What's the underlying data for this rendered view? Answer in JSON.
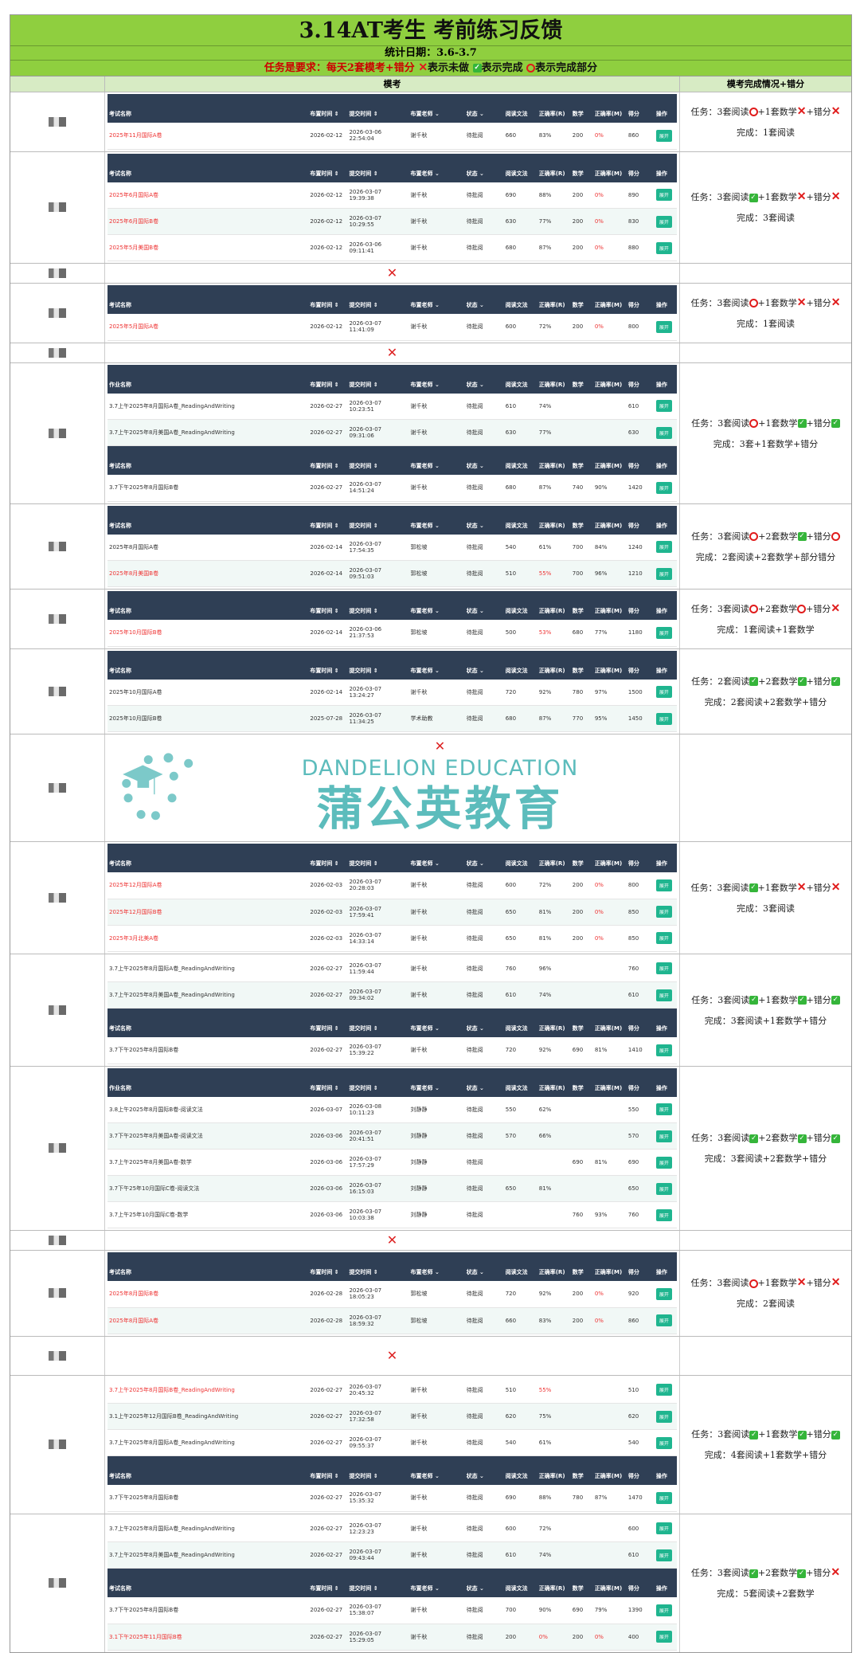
{
  "title": "3.14AT考生 考前练习反馈",
  "date": "统计日期：3.6-3.7",
  "req": {
    "text": "任务是要求：每天2套模考+错分",
    "x": "表示未做",
    "check": "表示完成",
    "circle": "表示完成部分"
  },
  "header": {
    "main": "模考",
    "right": "模考完成情况+错分"
  },
  "cols": {
    "exam": "考试名称",
    "work": "作业名称",
    "assign": "布置时间 ⇕",
    "submit": "提交时间 ⇕",
    "teacher": "布置老师 ⌄",
    "status": "状态 ⌄",
    "read": "阅读文法",
    "rrate": "正确率(R)",
    "math": "数学",
    "mrate": "正确率(M)",
    "score": "得分",
    "op": "操作"
  },
  "button_label": "展开",
  "x_mark": "✕",
  "colors": {
    "banner": "#8fcf3f",
    "table_header": "#2f3f55",
    "button": "#1fb58f",
    "red": "#e33",
    "check": "#35b53a"
  },
  "watermark": {
    "en": "DANDELION EDUCATION",
    "cn": "蒲公英教育"
  },
  "students": [
    {
      "tables": [
        {
          "kind": "exam",
          "rows": [
            [
              "2025年11月国际A卷",
              "2026-02-12",
              "2026-03-06 22:54:04",
              "谢千秋",
              "待批阅",
              "660",
              "83%",
              "200",
              "0%",
              "860",
              [
                0,
                8
              ]
            ]
          ]
        }
      ],
      "task": [
        [
          "任务：3套阅读",
          "o"
        ],
        [
          "+1套数学",
          "x"
        ],
        [
          "+错分",
          "x"
        ]
      ],
      "done": "完成：1套阅读"
    },
    {
      "tables": [
        {
          "kind": "exam",
          "rows": [
            [
              "2025年6月国际A卷",
              "2026-02-12",
              "2026-03-07 19:39:38",
              "谢千秋",
              "待批阅",
              "690",
              "88%",
              "200",
              "0%",
              "890",
              [
                0,
                8
              ]
            ],
            [
              "2025年6月国际B卷",
              "2026-02-12",
              "2026-03-07 10:29:55",
              "谢千秋",
              "待批阅",
              "630",
              "77%",
              "200",
              "0%",
              "830",
              [
                0,
                8
              ]
            ],
            [
              "2025年5月美国B卷",
              "2026-02-12",
              "2026-03-06 09:11:41",
              "谢千秋",
              "待批阅",
              "680",
              "87%",
              "200",
              "0%",
              "880",
              [
                0,
                8
              ]
            ]
          ]
        }
      ],
      "task": [
        [
          "任务：3套阅读",
          "c"
        ],
        [
          "+1套数学",
          "x"
        ],
        [
          "+错分",
          "x"
        ]
      ],
      "done": "完成：3套阅读"
    },
    {
      "x": true
    },
    {
      "tables": [
        {
          "kind": "exam",
          "rows": [
            [
              "2025年5月国际A卷",
              "2026-02-12",
              "2026-03-07 11:41:09",
              "谢千秋",
              "待批阅",
              "600",
              "72%",
              "200",
              "0%",
              "800",
              [
                0,
                8
              ]
            ]
          ]
        }
      ],
      "task": [
        [
          "任务：3套阅读",
          "o"
        ],
        [
          "+1套数学",
          "x"
        ],
        [
          "+错分",
          "x"
        ]
      ],
      "done": "完成：1套阅读"
    },
    {
      "x": true
    },
    {
      "tables": [
        {
          "kind": "work",
          "rows": [
            [
              "3.7上午2025年8月国际A卷_ReadingAndWriting",
              "2026-02-27",
              "2026-03-07 10:23:51",
              "谢千秋",
              "待批阅",
              "610",
              "74%",
              "",
              "",
              "610",
              []
            ],
            [
              "3.7上午2025年8月美国A卷_ReadingAndWriting",
              "2026-02-27",
              "2026-03-07 09:31:06",
              "谢千秋",
              "待批阅",
              "630",
              "77%",
              "",
              "",
              "630",
              []
            ]
          ]
        },
        {
          "kind": "exam",
          "rows": [
            [
              "3.7下午2025年8月国际B卷",
              "2026-02-27",
              "2026-03-07 14:51:24",
              "谢千秋",
              "待批阅",
              "680",
              "87%",
              "740",
              "90%",
              "1420",
              []
            ]
          ]
        }
      ],
      "task": [
        [
          "任务：3套阅读",
          "o"
        ],
        [
          "+1套数学",
          "c"
        ],
        [
          "+错分",
          "c"
        ]
      ],
      "done": "完成：3套+1套数学+错分"
    },
    {
      "tables": [
        {
          "kind": "exam",
          "rows": [
            [
              "2025年8月国际A卷",
              "2026-02-14",
              "2026-03-07 17:54:35",
              "郭松坡",
              "待批阅",
              "540",
              "61%",
              "700",
              "84%",
              "1240",
              []
            ],
            [
              "2025年8月美国B卷",
              "2026-02-14",
              "2026-03-07 09:51:03",
              "郭松坡",
              "待批阅",
              "510",
              "55%",
              "700",
              "96%",
              "1210",
              [
                0,
                6
              ]
            ]
          ]
        }
      ],
      "task": [
        [
          "任务：3套阅读",
          "o"
        ],
        [
          "+2套数学",
          "c"
        ],
        [
          "+错分",
          "o"
        ]
      ],
      "done": "完成：2套阅读+2套数学+部分错分"
    },
    {
      "tables": [
        {
          "kind": "exam",
          "rows": [
            [
              "2025年10月国际B卷",
              "2026-02-14",
              "2026-03-06 21:37:53",
              "郭松坡",
              "待批阅",
              "500",
              "53%",
              "680",
              "77%",
              "1180",
              [
                0,
                6
              ]
            ]
          ]
        }
      ],
      "task": [
        [
          "任务：3套阅读",
          "o"
        ],
        [
          "+2套数学",
          "o"
        ],
        [
          "+错分",
          "x"
        ]
      ],
      "done": "完成：1套阅读+1套数学"
    },
    {
      "tables": [
        {
          "kind": "exam",
          "rows": [
            [
              "2025年10月国际A卷",
              "2026-02-14",
              "2026-03-07 13:24:27",
              "谢千秋",
              "待批阅",
              "720",
              "92%",
              "780",
              "97%",
              "1500",
              []
            ],
            [
              "2025年10月国际B卷",
              "2025-07-28",
              "2026-03-07 11:34:25",
              "学术助教",
              "待批阅",
              "680",
              "87%",
              "770",
              "95%",
              "1450",
              []
            ]
          ]
        }
      ],
      "task": [
        [
          "任务：2套阅读",
          "c"
        ],
        [
          "+2套数学",
          "c"
        ],
        [
          "+错分",
          "c"
        ]
      ],
      "done": "完成：2套阅读+2套数学+错分"
    },
    {
      "x": true,
      "tall": true
    },
    {
      "tables": [
        {
          "kind": "exam",
          "rows": [
            [
              "2025年12月国际A卷",
              "2026-02-03",
              "2026-03-07 20:28:03",
              "谢千秋",
              "待批阅",
              "600",
              "72%",
              "200",
              "0%",
              "800",
              [
                0,
                8
              ]
            ],
            [
              "2025年12月国际B卷",
              "2026-02-03",
              "2026-03-07 17:59:41",
              "谢千秋",
              "待批阅",
              "650",
              "81%",
              "200",
              "0%",
              "850",
              [
                0,
                8
              ]
            ],
            [
              "2025年3月北美A卷",
              "2026-02-03",
              "2026-03-07 14:33:14",
              "谢千秋",
              "待批阅",
              "650",
              "81%",
              "200",
              "0%",
              "850",
              [
                0,
                8
              ]
            ]
          ]
        }
      ],
      "task": [
        [
          "任务：3套阅读",
          "c"
        ],
        [
          "+1套数学",
          "x"
        ],
        [
          "+错分",
          "x"
        ]
      ],
      "done": "完成：3套阅读"
    },
    {
      "tables": [
        {
          "kind": "work",
          "nohead": true,
          "rows": [
            [
              "3.7上午2025年8月国际A卷_ReadingAndWriting",
              "2026-02-27",
              "2026-03-07 11:59:44",
              "谢千秋",
              "待批阅",
              "760",
              "96%",
              "",
              "",
              "760",
              []
            ],
            [
              "3.7上午2025年8月美国A卷_ReadingAndWriting",
              "2026-02-27",
              "2026-03-07 09:34:02",
              "谢千秋",
              "待批阅",
              "610",
              "74%",
              "",
              "",
              "610",
              []
            ]
          ]
        },
        {
          "kind": "exam",
          "rows": [
            [
              "3.7下午2025年8月国际B卷",
              "2026-02-27",
              "2026-03-07 15:39:22",
              "谢千秋",
              "待批阅",
              "720",
              "92%",
              "690",
              "81%",
              "1410",
              []
            ]
          ]
        }
      ],
      "task": [
        [
          "任务：3套阅读",
          "c"
        ],
        [
          "+1套数学",
          "c"
        ],
        [
          "+错分",
          "c"
        ]
      ],
      "done": "完成：3套阅读+1套数学+错分"
    },
    {
      "tables": [
        {
          "kind": "work",
          "rows": [
            [
              "3.8上午2025年8月国际B卷-阅读文法",
              "2026-03-07",
              "2026-03-08 10:11:23",
              "刘静静",
              "待批阅",
              "550",
              "62%",
              "",
              "",
              "550",
              []
            ],
            [
              "3.7下午2025年8月美国A卷-阅读文法",
              "2026-03-06",
              "2026-03-07 20:41:51",
              "刘静静",
              "待批阅",
              "570",
              "66%",
              "",
              "",
              "570",
              []
            ],
            [
              "3.7上午2025年8月美国A卷-数学",
              "2026-03-06",
              "2026-03-07 17:57:29",
              "刘静静",
              "待批阅",
              "",
              "",
              "690",
              "81%",
              "690",
              []
            ],
            [
              "3.7下午25年10月国际C卷-阅读文法",
              "2026-03-06",
              "2026-03-07 16:15:03",
              "刘静静",
              "待批阅",
              "650",
              "81%",
              "",
              "",
              "650",
              []
            ],
            [
              "3.7上午25年10月国际C卷-数学",
              "2026-03-06",
              "2026-03-07 10:03:38",
              "刘静静",
              "待批阅",
              "",
              "",
              "760",
              "93%",
              "760",
              []
            ]
          ]
        }
      ],
      "task": [
        [
          "任务：3套阅读",
          "c"
        ],
        [
          "+2套数学",
          "c"
        ],
        [
          "+错分",
          "c"
        ]
      ],
      "done": "完成：3套阅读+2套数学+错分"
    },
    {
      "x": true
    },
    {
      "tables": [
        {
          "kind": "exam",
          "rows": [
            [
              "2025年8月国际B卷",
              "2026-02-28",
              "2026-03-07 18:05:23",
              "郭松坡",
              "待批阅",
              "720",
              "92%",
              "200",
              "0%",
              "920",
              [
                0,
                8
              ]
            ],
            [
              "2025年8月国际A卷",
              "2026-02-28",
              "2026-03-07 18:59:32",
              "郭松坡",
              "待批阅",
              "660",
              "83%",
              "200",
              "0%",
              "860",
              [
                0,
                8
              ]
            ]
          ]
        }
      ],
      "task": [
        [
          "任务：3套阅读",
          "o"
        ],
        [
          "+1套数学",
          "x"
        ],
        [
          "+错分",
          "x"
        ]
      ],
      "done": "完成：2套阅读"
    },
    {
      "x": true,
      "mid": true
    },
    {
      "tables": [
        {
          "kind": "work",
          "nohead": true,
          "rows": [
            [
              "3.7上午2025年8月国际B卷_ReadingAndWriting",
              "2026-02-27",
              "2026-03-07 20:45:32",
              "谢千秋",
              "待批阅",
              "510",
              "55%",
              "",
              "",
              "510",
              [
                0,
                6
              ]
            ],
            [
              "3.1上午2025年12月国际B卷_ReadingAndWriting",
              "2026-02-27",
              "2026-03-07 17:32:58",
              "谢千秋",
              "待批阅",
              "620",
              "75%",
              "",
              "",
              "620",
              []
            ],
            [
              "3.7上午2025年8月国际A卷_ReadingAndWriting",
              "2026-02-27",
              "2026-03-07 09:55:37",
              "谢千秋",
              "待批阅",
              "540",
              "61%",
              "",
              "",
              "540",
              []
            ]
          ]
        },
        {
          "kind": "exam",
          "rows": [
            [
              "3.7下午2025年8月国际B卷",
              "2026-02-27",
              "2026-03-07 15:35:32",
              "谢千秋",
              "待批阅",
              "690",
              "88%",
              "780",
              "87%",
              "1470",
              []
            ]
          ]
        }
      ],
      "task": [
        [
          "任务：3套阅读",
          "c"
        ],
        [
          "+1套数学",
          "c"
        ],
        [
          "+错分",
          "c"
        ]
      ],
      "done": "完成：4套阅读+1套数学+错分"
    },
    {
      "tables": [
        {
          "kind": "work",
          "nohead": true,
          "rows": [
            [
              "3.7上午2025年8月国际A卷_ReadingAndWriting",
              "2026-02-27",
              "2026-03-07 12:23:23",
              "谢千秋",
              "待批阅",
              "600",
              "72%",
              "",
              "",
              "600",
              []
            ],
            [
              "3.7上午2025年8月美国A卷_ReadingAndWriting",
              "2026-02-27",
              "2026-03-07 09:43:44",
              "谢千秋",
              "待批阅",
              "610",
              "74%",
              "",
              "",
              "610",
              []
            ]
          ]
        },
        {
          "kind": "exam",
          "rows": [
            [
              "3.7下午2025年8月国际B卷",
              "2026-02-27",
              "2026-03-07 15:38:07",
              "谢千秋",
              "待批阅",
              "700",
              "90%",
              "690",
              "79%",
              "1390",
              []
            ],
            [
              "3.1下午2025年11月国际B卷",
              "2026-02-27",
              "2026-03-07 15:29:05",
              "谢千秋",
              "待批阅",
              "200",
              "0%",
              "200",
              "0%",
              "400",
              [
                0,
                6,
                8
              ]
            ]
          ]
        }
      ],
      "task": [
        [
          "任务：3套阅读",
          "c"
        ],
        [
          "+2套数学",
          "c"
        ],
        [
          "+错分",
          "x"
        ]
      ],
      "done": "完成：5套阅读+2套数学"
    }
  ]
}
